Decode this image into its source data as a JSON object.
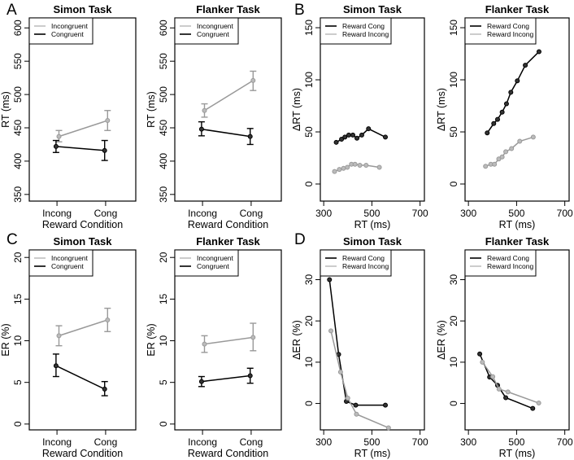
{
  "chart_data": [
    {
      "panel_letter": "A",
      "title": "Simon Task",
      "type": "line",
      "xlabel": "Reward Condition",
      "ylabel": "RT (ms)",
      "categories": [
        "Incong",
        "Cong"
      ],
      "xlim": [
        0.43,
        2.62
      ],
      "ylim": [
        340,
        615
      ],
      "yticks": [
        350,
        400,
        450,
        500,
        550,
        600
      ],
      "legend": [
        "Incongruent",
        "Congruent"
      ],
      "series": [
        {
          "name": "Incongruent",
          "color": "#999999",
          "values": [
            437,
            461
          ],
          "err_low": [
            429,
            446
          ],
          "err_high": [
            446,
            476
          ]
        },
        {
          "name": "Congruent",
          "color": "#000000",
          "values": [
            422,
            416
          ],
          "err_low": [
            413,
            401
          ],
          "err_high": [
            431,
            431
          ]
        }
      ]
    },
    {
      "title": "Flanker Task",
      "type": "line",
      "xlabel": "Reward Condition",
      "ylabel": "RT (ms)",
      "categories": [
        "Incong",
        "Cong"
      ],
      "xlim": [
        0.43,
        2.62
      ],
      "ylim": [
        340,
        615
      ],
      "yticks": [
        350,
        400,
        450,
        500,
        550,
        600
      ],
      "legend": [
        "Incongruent",
        "Congruent"
      ],
      "series": [
        {
          "name": "Incongruent",
          "color": "#999999",
          "values": [
            476,
            521
          ],
          "err_low": [
            466,
            506
          ],
          "err_high": [
            486,
            535
          ]
        },
        {
          "name": "Congruent",
          "color": "#000000",
          "values": [
            448,
            437
          ],
          "err_low": [
            438,
            425
          ],
          "err_high": [
            459,
            449
          ]
        }
      ]
    },
    {
      "panel_letter": "B",
      "title": "Simon Task",
      "type": "line",
      "xlabel": "RT (ms)",
      "ylabel": "ΔRT (ms)",
      "xlim": [
        286,
        718
      ],
      "ylim": [
        -16.4,
        159.4
      ],
      "xticks": [
        300,
        500,
        700
      ],
      "yticks": [
        0,
        50,
        100,
        150
      ],
      "legend": [
        "Reward Cong",
        "Reward Incong"
      ],
      "series": [
        {
          "name": "Reward Cong",
          "color": "#000000",
          "x": [
            352,
            374,
            388,
            404,
            421,
            438,
            458,
            486,
            556
          ],
          "y": [
            40,
            43,
            45,
            47,
            47,
            44,
            47,
            53,
            45
          ]
        },
        {
          "name": "Reward Incong",
          "color": "#999999",
          "x": [
            345,
            365,
            382,
            398,
            415,
            430,
            450,
            476,
            531
          ],
          "y": [
            12,
            14,
            15,
            16,
            19,
            19,
            18,
            18,
            16
          ]
        }
      ]
    },
    {
      "title": "Flanker Task",
      "type": "line",
      "xlabel": "RT (ms)",
      "ylabel": "ΔRT (ms)",
      "xlim": [
        286,
        718
      ],
      "ylim": [
        -16.4,
        159.4
      ],
      "xticks": [
        300,
        500,
        700
      ],
      "yticks": [
        0,
        50,
        100,
        150
      ],
      "legend": [
        "Reward Cong",
        "Reward Incong"
      ],
      "series": [
        {
          "name": "Reward Cong",
          "color": "#000000",
          "x": [
            378,
            405,
            421,
            440,
            458,
            476,
            503,
            536,
            593
          ],
          "y": [
            49,
            58,
            62,
            69,
            77,
            88,
            99,
            114,
            127
          ]
        },
        {
          "name": "Reward Incong",
          "color": "#999999",
          "x": [
            371,
            393,
            408,
            426,
            440,
            455,
            479,
            513,
            569
          ],
          "y": [
            17,
            19,
            19,
            24,
            26,
            31,
            34,
            41,
            45
          ]
        }
      ]
    },
    {
      "panel_letter": "C",
      "title": "Simon Task",
      "type": "line",
      "xlabel": "Reward Condition",
      "ylabel": "ER (%)",
      "categories": [
        "Incong",
        "Cong"
      ],
      "xlim": [
        0.43,
        2.62
      ],
      "ylim": [
        -0.7,
        20.9
      ],
      "yticks": [
        0,
        5,
        10,
        15,
        20
      ],
      "legend": [
        "Incongruent",
        "Congruent"
      ],
      "series": [
        {
          "name": "Incongruent",
          "color": "#999999",
          "values": [
            10.6,
            12.5
          ],
          "err_low": [
            9.4,
            11.1
          ],
          "err_high": [
            11.8,
            13.9
          ]
        },
        {
          "name": "Congruent",
          "color": "#000000",
          "values": [
            7.0,
            4.2
          ],
          "err_low": [
            5.7,
            3.4
          ],
          "err_high": [
            8.4,
            5.1
          ]
        }
      ]
    },
    {
      "title": "Flanker Task",
      "type": "line",
      "xlabel": "Reward Condition",
      "ylabel": "ER (%)",
      "categories": [
        "Incong",
        "Cong"
      ],
      "xlim": [
        0.43,
        2.62
      ],
      "ylim": [
        -0.7,
        20.9
      ],
      "yticks": [
        0,
        5,
        10,
        15,
        20
      ],
      "legend": [
        "Incongruent",
        "Congruent"
      ],
      "series": [
        {
          "name": "Incongruent",
          "color": "#999999",
          "values": [
            9.6,
            10.4
          ],
          "err_low": [
            8.6,
            8.8
          ],
          "err_high": [
            10.6,
            12.1
          ]
        },
        {
          "name": "Congruent",
          "color": "#000000",
          "values": [
            5.1,
            5.8
          ],
          "err_low": [
            4.5,
            4.9
          ],
          "err_high": [
            5.7,
            6.7
          ]
        }
      ]
    },
    {
      "panel_letter": "D",
      "title": "Simon Task",
      "type": "line",
      "xlabel": "RT (ms)",
      "ylabel": "ΔER (%)",
      "xlim": [
        286,
        718
      ],
      "ylim": [
        -6.4,
        37.2
      ],
      "xticks": [
        300,
        500,
        700
      ],
      "yticks": [
        0,
        10,
        20,
        30
      ],
      "legend": [
        "Reward Cong",
        "Reward Incong"
      ],
      "series": [
        {
          "name": "Reward Cong",
          "color": "#000000",
          "x": [
            324,
            362,
            394,
            433,
            556
          ],
          "y": [
            30,
            11.9,
            0.5,
            -0.4,
            -0.4
          ]
        },
        {
          "name": "Reward Incong",
          "color": "#999999",
          "x": [
            330,
            370,
            400,
            436,
            569
          ],
          "y": [
            17.6,
            7.6,
            1.3,
            -2.6,
            -5.9
          ]
        }
      ]
    },
    {
      "title": "Flanker Task",
      "type": "line",
      "xlabel": "RT (ms)",
      "ylabel": "ΔER (%)",
      "xlim": [
        286,
        718
      ],
      "ylim": [
        -6.4,
        37.2
      ],
      "xticks": [
        300,
        500,
        700
      ],
      "yticks": [
        0,
        10,
        20,
        30
      ],
      "legend": [
        "Reward Cong",
        "Reward Incong"
      ],
      "series": [
        {
          "name": "Reward Cong",
          "color": "#000000",
          "x": [
            347,
            388,
            421,
            455,
            567
          ],
          "y": [
            12.0,
            6.4,
            4.4,
            1.4,
            -1.2
          ]
        },
        {
          "name": "Reward Incong",
          "color": "#999999",
          "x": [
            358,
            401,
            427,
            464,
            592
          ],
          "y": [
            10.0,
            6.5,
            3.5,
            2.8,
            0.1
          ]
        }
      ]
    }
  ]
}
